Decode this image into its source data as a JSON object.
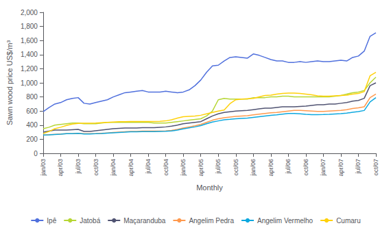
{
  "chart_data": {
    "type": "line",
    "xlabel": "Monthly",
    "ylabel": "Sawn wood price US$/m³",
    "categories": [
      "jan/03",
      null,
      null,
      "apr/03",
      null,
      null,
      "jul/03",
      null,
      null,
      "oct/03",
      null,
      null,
      "jan/04",
      null,
      null,
      "apr/04",
      null,
      null,
      "jul/04",
      null,
      null,
      "oct/04",
      null,
      null,
      "jan/05",
      null,
      null,
      "apr/05",
      null,
      null,
      "jul/05",
      null,
      null,
      "oct/05",
      null,
      null,
      "jan/06",
      null,
      null,
      "apr/06",
      null,
      null,
      "jul/06",
      null,
      null,
      "oct/06",
      null,
      null,
      "jan/07",
      null,
      null,
      "apr/07",
      null,
      null,
      "jul/07",
      null,
      null,
      "oct/07"
    ],
    "series": [
      {
        "name": "Ipê",
        "values": [
          590,
          650,
          700,
          720,
          760,
          780,
          790,
          710,
          700,
          720,
          740,
          760,
          800,
          830,
          860,
          870,
          880,
          890,
          870,
          870,
          870,
          880,
          870,
          860,
          870,
          900,
          960,
          1040,
          1150,
          1240,
          1250,
          1310,
          1360,
          1370,
          1360,
          1350,
          1410,
          1390,
          1360,
          1330,
          1310,
          1310,
          1290,
          1290,
          1300,
          1290,
          1300,
          1310,
          1300,
          1300,
          1310,
          1320,
          1310,
          1360,
          1380,
          1450,
          1660,
          1710
        ]
      },
      {
        "name": "Jatobá",
        "values": [
          350,
          370,
          400,
          410,
          420,
          430,
          430,
          420,
          420,
          420,
          430,
          440,
          440,
          440,
          440,
          440,
          440,
          440,
          440,
          430,
          430,
          430,
          440,
          450,
          460,
          470,
          480,
          490,
          530,
          600,
          760,
          780,
          770,
          770,
          770,
          770,
          790,
          790,
          790,
          800,
          800,
          810,
          810,
          800,
          800,
          800,
          800,
          800,
          800,
          800,
          810,
          820,
          840,
          860,
          870,
          890,
          1000,
          1080
        ]
      },
      {
        "name": "Maçaranduba",
        "values": [
          300,
          315,
          330,
          330,
          330,
          335,
          340,
          310,
          310,
          320,
          330,
          340,
          350,
          355,
          360,
          360,
          360,
          365,
          365,
          365,
          370,
          375,
          385,
          400,
          420,
          430,
          440,
          450,
          490,
          530,
          560,
          580,
          590,
          600,
          605,
          610,
          620,
          630,
          640,
          640,
          650,
          660,
          660,
          660,
          665,
          670,
          680,
          690,
          690,
          700,
          700,
          710,
          720,
          740,
          750,
          780,
          960,
          1000
        ]
      },
      {
        "name": "Angelim Pedra",
        "values": [
          260,
          265,
          270,
          275,
          280,
          280,
          285,
          278,
          278,
          280,
          285,
          290,
          295,
          300,
          305,
          310,
          310,
          315,
          315,
          315,
          315,
          318,
          325,
          340,
          360,
          375,
          390,
          410,
          440,
          470,
          490,
          505,
          515,
          525,
          530,
          535,
          545,
          555,
          565,
          575,
          580,
          590,
          600,
          610,
          610,
          605,
          600,
          595,
          595,
          600,
          605,
          610,
          620,
          635,
          645,
          660,
          790,
          840
        ]
      },
      {
        "name": "Angelim Vermelho",
        "values": [
          260,
          262,
          268,
          272,
          278,
          280,
          283,
          275,
          275,
          278,
          282,
          287,
          292,
          296,
          300,
          305,
          305,
          308,
          308,
          308,
          310,
          312,
          318,
          330,
          348,
          362,
          375,
          393,
          420,
          445,
          460,
          475,
          482,
          490,
          495,
          500,
          510,
          520,
          530,
          538,
          545,
          555,
          565,
          565,
          560,
          553,
          548,
          548,
          550,
          553,
          558,
          563,
          570,
          583,
          592,
          608,
          730,
          790
        ]
      },
      {
        "name": "Cumaru",
        "values": [
          280,
          310,
          350,
          370,
          395,
          415,
          425,
          428,
          428,
          430,
          435,
          440,
          445,
          448,
          450,
          452,
          452,
          452,
          452,
          452,
          455,
          460,
          475,
          500,
          520,
          525,
          530,
          540,
          560,
          580,
          600,
          615,
          705,
          760,
          770,
          775,
          780,
          800,
          820,
          825,
          840,
          850,
          855,
          855,
          850,
          840,
          830,
          815,
          810,
          810,
          815,
          820,
          825,
          840,
          850,
          875,
          1100,
          1150
        ]
      }
    ],
    "ylim": [
      0,
      2000
    ],
    "yticks": [
      0,
      200,
      400,
      600,
      800,
      1000,
      1200,
      1400,
      1600,
      1800,
      2000
    ],
    "grid": false,
    "legend": "bottom"
  }
}
